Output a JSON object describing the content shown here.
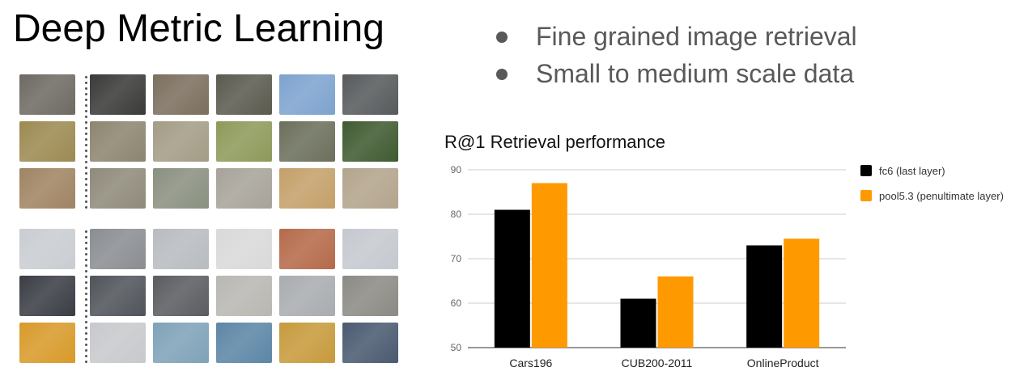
{
  "slide": {
    "title": "Deep Metric Learning",
    "bullets": [
      "Fine grained image retrieval",
      "Small to medium scale data"
    ]
  },
  "image_grids": {
    "birds": {
      "rows": [
        [
          "#6e6a63",
          "#3a3a38",
          "#7b6f5e",
          "#5a5a4f",
          "#7ea3cf",
          "#575a5c"
        ],
        [
          "#9c8a52",
          "#8c8570",
          "#a39c86",
          "#8d9a5a",
          "#6b6f5b",
          "#3f5a30"
        ],
        [
          "#a08463",
          "#8f8a7a",
          "#8a9080",
          "#a7a39a",
          "#c4a06a",
          "#b3a48c"
        ]
      ]
    },
    "cars": {
      "rows": [
        [
          "#c9cdd2",
          "#8a8d92",
          "#b8bcc0",
          "#d8d9d8",
          "#b56a4a",
          "#c5c9cf"
        ],
        [
          "#3a3d44",
          "#50545a",
          "#5a5c60",
          "#b9b7b2",
          "#a9acb0",
          "#8c8a84"
        ],
        [
          "#d89a2a",
          "#c7c9cc",
          "#7fa2b8",
          "#5c86a6",
          "#c79a3c",
          "#4a5a70"
        ]
      ]
    }
  },
  "chart_data": {
    "type": "bar",
    "title": "R@1 Retrieval performance",
    "categories": [
      "Cars196",
      "CUB200-2011",
      "OnlineProduct"
    ],
    "series": [
      {
        "name": "fc6 (last layer)",
        "color": "#000000",
        "values": [
          81,
          61,
          73
        ]
      },
      {
        "name": "pool5.3 (penultimate layer)",
        "color": "#ff9900",
        "values": [
          87,
          66,
          74.5
        ]
      }
    ],
    "ylim": [
      50,
      90
    ],
    "yticks": [
      50,
      60,
      70,
      80,
      90
    ],
    "grid": true,
    "legend": "right"
  }
}
